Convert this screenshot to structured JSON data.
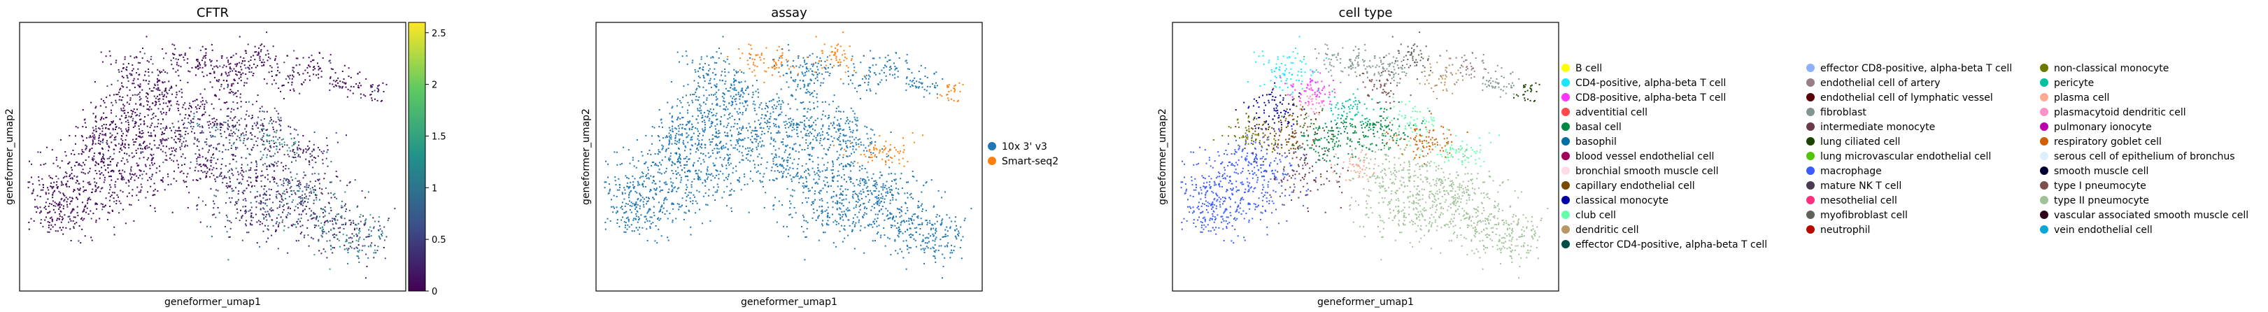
{
  "chart_data": [
    {
      "type": "scatter",
      "title": "CFTR",
      "xlabel": "geneformer_umap1",
      "ylabel": "geneformer_umap2",
      "colorbar": {
        "ticks": [
          "0",
          "0.5",
          "1",
          "1.5",
          "2",
          "2.5"
        ],
        "range": [
          0,
          2.6
        ],
        "colormap": "viridis",
        "colors": [
          "#440154",
          "#3b528b",
          "#21918c",
          "#5ec962",
          "#fde725"
        ]
      }
    },
    {
      "type": "scatter",
      "title": "assay",
      "xlabel": "geneformer_umap1",
      "ylabel": "geneformer_umap2",
      "legend_position": "right",
      "series": [
        {
          "name": "10x 3' v3",
          "color": "#1f77b4"
        },
        {
          "name": "Smart-seq2",
          "color": "#ff7f0e"
        }
      ]
    },
    {
      "type": "scatter",
      "title": "cell type",
      "xlabel": "geneformer_umap1",
      "ylabel": "geneformer_umap2",
      "legend_position": "right",
      "series": [
        {
          "name": "B cell",
          "color": "#ffff00"
        },
        {
          "name": "CD4-positive, alpha-beta T cell",
          "color": "#1ce6ff"
        },
        {
          "name": "CD8-positive, alpha-beta T cell",
          "color": "#ff34ff"
        },
        {
          "name": "adventitial cell",
          "color": "#ff4a46"
        },
        {
          "name": "basal cell",
          "color": "#008941"
        },
        {
          "name": "basophil",
          "color": "#006fa6"
        },
        {
          "name": "blood vessel endothelial cell",
          "color": "#a30059"
        },
        {
          "name": "bronchial smooth muscle cell",
          "color": "#ffdbe5"
        },
        {
          "name": "capillary endothelial cell",
          "color": "#7a4900"
        },
        {
          "name": "classical monocyte",
          "color": "#0000a6"
        },
        {
          "name": "club cell",
          "color": "#63ffac"
        },
        {
          "name": "dendritic cell",
          "color": "#b79762"
        },
        {
          "name": "effector CD4-positive, alpha-beta T cell",
          "color": "#004d43"
        },
        {
          "name": "effector CD8-positive, alpha-beta T cell",
          "color": "#8fb0ff"
        },
        {
          "name": "endothelial cell of artery",
          "color": "#997d87"
        },
        {
          "name": "endothelial cell of lymphatic vessel",
          "color": "#5a0007"
        },
        {
          "name": "fibroblast",
          "color": "#809693"
        },
        {
          "name": "intermediate monocyte",
          "color": "#6a3a4c"
        },
        {
          "name": "lung ciliated cell",
          "color": "#1b4400"
        },
        {
          "name": "lung microvascular endothelial cell",
          "color": "#4fc601"
        },
        {
          "name": "macrophage",
          "color": "#3b5dff"
        },
        {
          "name": "mature NK T cell",
          "color": "#4a3b53"
        },
        {
          "name": "mesothelial cell",
          "color": "#ff2f80"
        },
        {
          "name": "myofibroblast cell",
          "color": "#61615a"
        },
        {
          "name": "neutrophil",
          "color": "#ba0900"
        },
        {
          "name": "non-classical monocyte",
          "color": "#6b7900"
        },
        {
          "name": "pericyte",
          "color": "#00c2a0"
        },
        {
          "name": "plasma cell",
          "color": "#ffaa92"
        },
        {
          "name": "plasmacytoid dendritic cell",
          "color": "#ff90c9"
        },
        {
          "name": "pulmonary ionocyte",
          "color": "#b903aa"
        },
        {
          "name": "respiratory goblet cell",
          "color": "#d16100"
        },
        {
          "name": "serous cell of epithelium of bronchus",
          "color": "#ddefff"
        },
        {
          "name": "smooth muscle cell",
          "color": "#000035"
        },
        {
          "name": "type I pneumocyte",
          "color": "#7b4f4b"
        },
        {
          "name": "type II pneumocyte",
          "color": "#a1c299"
        },
        {
          "name": "vascular associated smooth muscle cell",
          "color": "#300018"
        },
        {
          "name": "vein endothelial cell",
          "color": "#0aa6d8"
        }
      ]
    }
  ]
}
